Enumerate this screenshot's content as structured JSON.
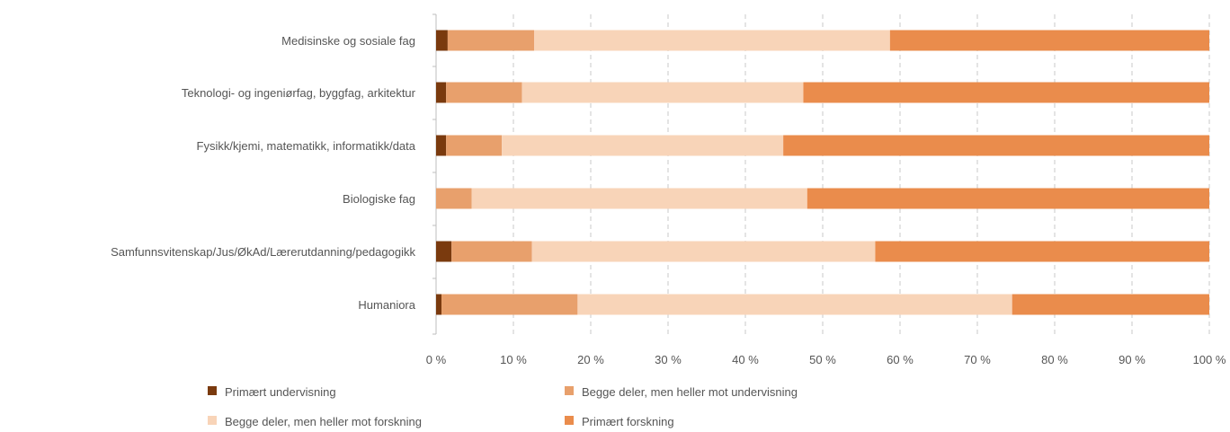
{
  "chart_data": {
    "type": "bar",
    "orientation": "horizontal",
    "stacked": "percent",
    "categories": [
      "Medisinske og sosiale fag",
      "Teknologi- og ingeniørfag, byggfag, arkitektur",
      "Fysikk/kjemi, matematikk, informatikk/data",
      "Biologiske fag",
      "Samfunnsvitenskap/Jus/ØkAd/Lærerutdanning/pedagogikk",
      "Humaniora"
    ],
    "series": [
      {
        "name": "Primært undervisning",
        "color": "#7a3a0e",
        "values": [
          1.5,
          1.3,
          1.3,
          0.0,
          2.0,
          0.7
        ]
      },
      {
        "name": "Begge deler, men heller mot undervisning",
        "color": "#e8a06c",
        "values": [
          11.2,
          9.8,
          7.2,
          4.6,
          10.4,
          17.6
        ]
      },
      {
        "name": "Begge deler, men heller mot forskning",
        "color": "#f8d4b8",
        "values": [
          46.0,
          36.4,
          36.4,
          43.4,
          44.4,
          56.2
        ]
      },
      {
        "name": "Primært forskning",
        "color": "#ea8c4c",
        "values": [
          41.3,
          52.5,
          55.1,
          52.0,
          43.2,
          25.5
        ]
      }
    ],
    "xlim": [
      0,
      100
    ],
    "xticks": [
      "0 %",
      "10 %",
      "20 %",
      "30 %",
      "40 %",
      "50 %",
      "60 %",
      "70 %",
      "80 %",
      "90 %",
      "100 %"
    ],
    "grid": "vertical dashed",
    "legend": "bottom"
  }
}
